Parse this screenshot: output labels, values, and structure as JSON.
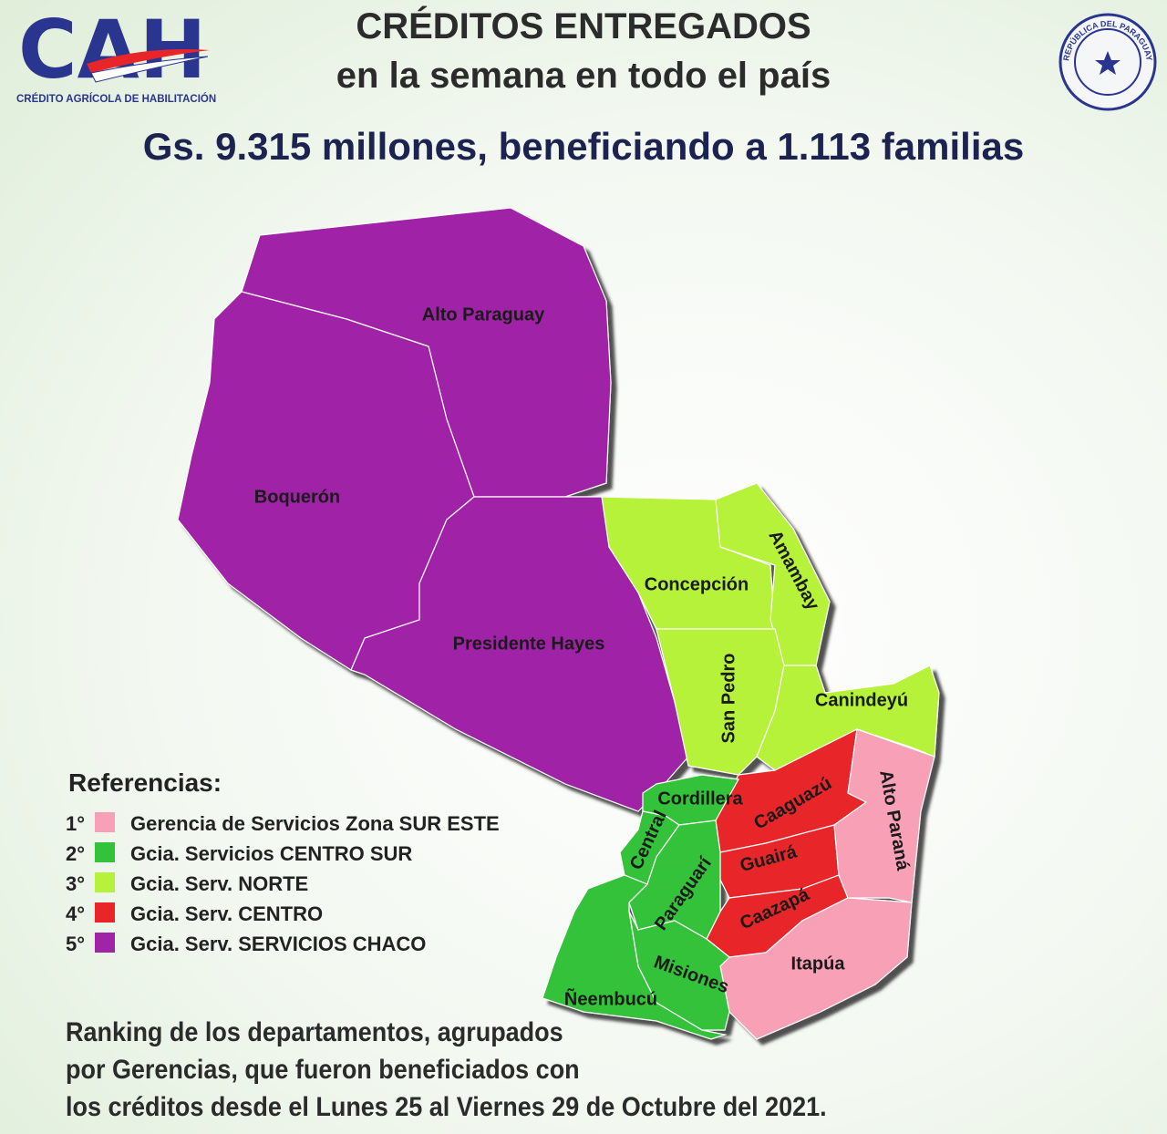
{
  "header": {
    "logo": "CAH",
    "logo_subtitle": "CRÉDITO AGRÍCOLA DE HABILITACIÓN",
    "title": "CRÉDITOS ENTREGADOS",
    "subtitle": "en la semana en todo el país",
    "headline": "Gs. 9.315 millones, beneficiando a 1.113 familias",
    "seal": "REPÚBLICA DEL PARAGUAY"
  },
  "map": {
    "regions": [
      {
        "label": "Alto Paraguay",
        "color": "#a024a6"
      },
      {
        "label": "Boquerón",
        "color": "#a024a6"
      },
      {
        "label": "Presidente Hayes",
        "color": "#a024a6"
      },
      {
        "label": "Concepción",
        "color": "#b7f23a"
      },
      {
        "label": "Amambay",
        "color": "#b7f23a"
      },
      {
        "label": "San Pedro",
        "color": "#b7f23a"
      },
      {
        "label": "Canindeyú",
        "color": "#b7f23a"
      },
      {
        "label": "Caaguazú",
        "color": "#e8262a"
      },
      {
        "label": "Guairá",
        "color": "#e8262a"
      },
      {
        "label": "Caazapá",
        "color": "#e8262a"
      },
      {
        "label": "Alto Paraná",
        "color": "#f8a0b6"
      },
      {
        "label": "Itapúa",
        "color": "#f8a0b6"
      },
      {
        "label": "Cordillera",
        "color": "#34c23a"
      },
      {
        "label": "Central",
        "color": "#34c23a"
      },
      {
        "label": "Paraguarí",
        "color": "#34c23a"
      },
      {
        "label": "Misiones",
        "color": "#34c23a"
      },
      {
        "label": "Ñeembucú",
        "color": "#34c23a"
      }
    ]
  },
  "legend": {
    "title": "Referencias:",
    "items": [
      {
        "rank": "1°",
        "label": "Gerencia de Servicios Zona SUR ESTE",
        "color": "#f8a0b6"
      },
      {
        "rank": "2°",
        "label": "Gcia. Servicios CENTRO SUR",
        "color": "#34c23a"
      },
      {
        "rank": "3°",
        "label": "Gcia. Serv. NORTE",
        "color": "#b7f23a"
      },
      {
        "rank": "4°",
        "label": "Gcia. Serv. CENTRO",
        "color": "#e8262a"
      },
      {
        "rank": "5°",
        "label": "Gcia. Serv. SERVICIOS CHACO",
        "color": "#a024a6"
      }
    ]
  },
  "footer": {
    "lines": [
      "Ranking de los departamentos, agrupados",
      "por Gerencias, que fueron beneficiados con",
      "los créditos desde el Lunes 25 al Viernes 29 de Octubre del 2021."
    ]
  }
}
